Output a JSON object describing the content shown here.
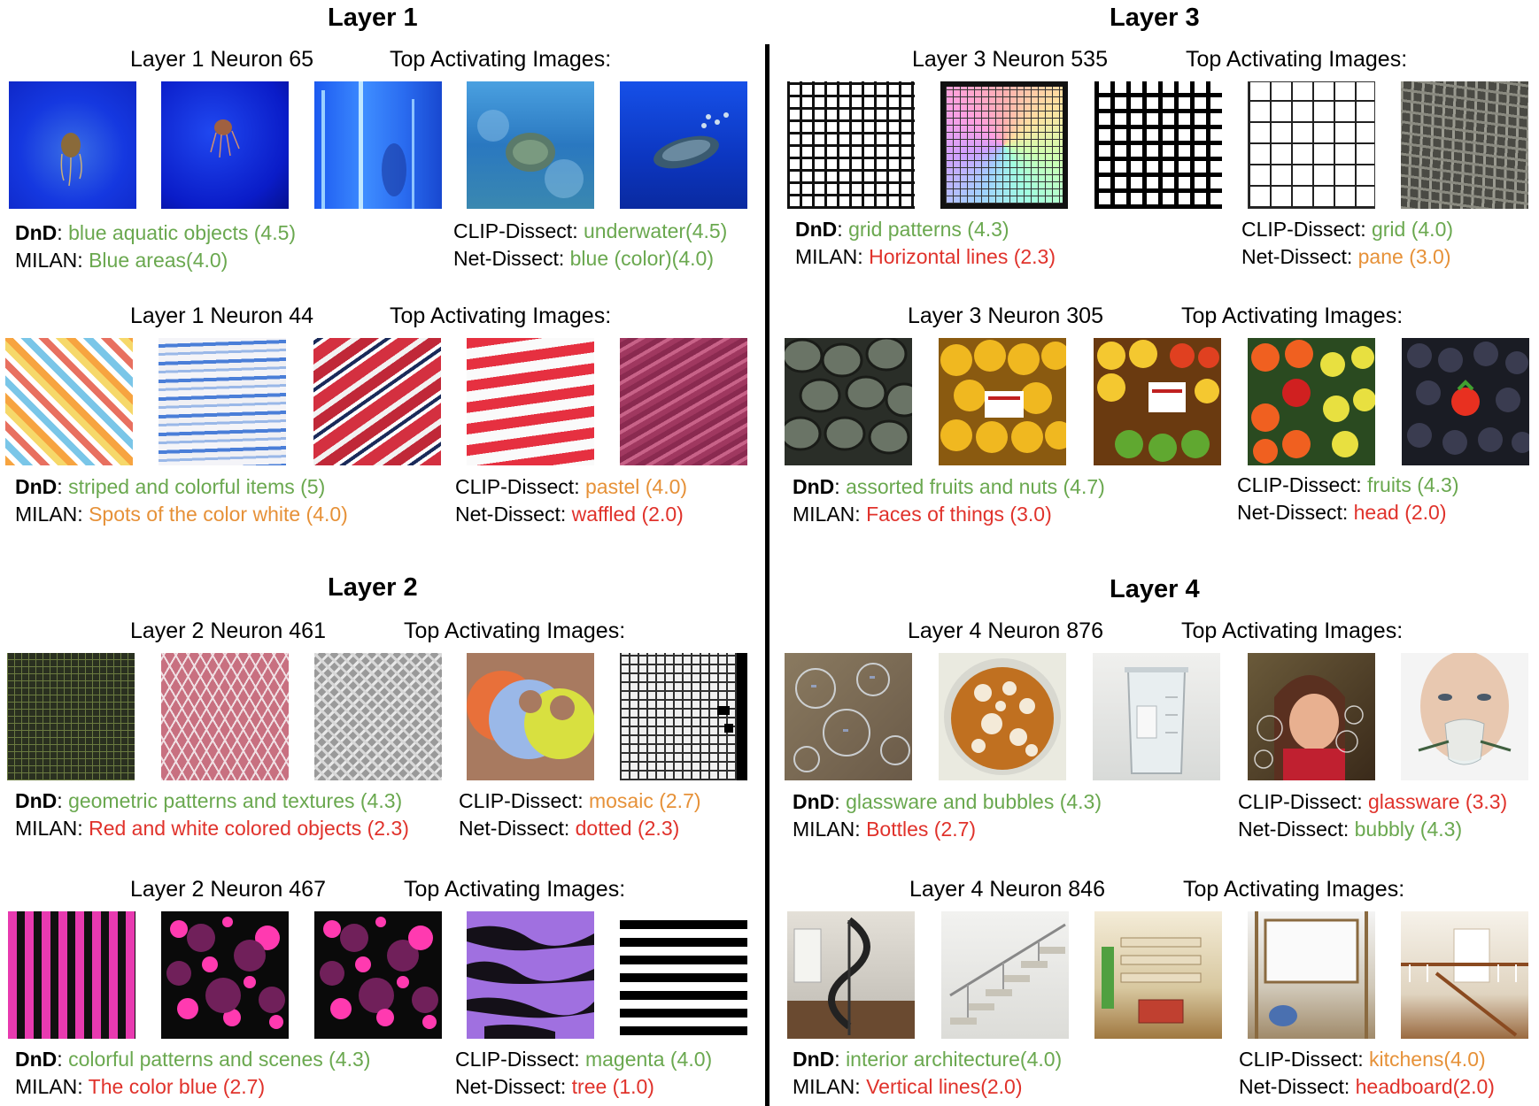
{
  "layers": {
    "layer1": "Layer 1",
    "layer2": "Layer 2",
    "layer3": "Layer 3",
    "layer4": "Layer 4"
  },
  "top_label": "Top Activating Images:",
  "method_labels": {
    "dnd": "DnD",
    "milan": "MILAN:",
    "clip": "CLIP-Dissect:",
    "net": "Net-Dissect:"
  },
  "panels": [
    {
      "neuron": "Layer 1 Neuron 65",
      "dnd": "blue aquatic objects (4.5)",
      "milan": "Blue areas(4.0)",
      "clip": "underwater(4.5)",
      "net": "blue (color)(4.0)"
    },
    {
      "neuron": "Layer 1 Neuron 44",
      "dnd": "striped and colorful items (5)",
      "milan": "Spots of the color white (4.0)",
      "clip": "pastel (4.0)",
      "net": "waffled (2.0)"
    },
    {
      "neuron": "Layer 2 Neuron 461",
      "dnd": "geometric patterns and textures (4.3)",
      "milan": "Red and white colored objects (2.3)",
      "clip": "mosaic (2.7)",
      "net": "dotted (2.3)"
    },
    {
      "neuron": "Layer 2 Neuron 467",
      "dnd": "colorful patterns and scenes (4.3)",
      "milan": "The color blue (2.7)",
      "clip": "magenta (4.0)",
      "net": "tree (1.0)"
    },
    {
      "neuron": "Layer 3 Neuron 535",
      "dnd": "grid patterns (4.3)",
      "milan": "Horizontal lines (2.3)",
      "clip": "grid (4.0)",
      "net": "pane (3.0)"
    },
    {
      "neuron": "Layer 3 Neuron 305",
      "dnd": "assorted fruits and nuts (4.7)",
      "milan": "Faces of things (3.0)",
      "clip": "fruits (4.3)",
      "net": "head (2.0)"
    },
    {
      "neuron": "Layer 4 Neuron 876",
      "dnd": "glassware and bubbles (4.3)",
      "milan": "Bottles (2.7)",
      "clip": "glassware (3.3)",
      "net": "bubbly (4.3)"
    },
    {
      "neuron": "Layer 4 Neuron 846",
      "dnd": "interior architecture(4.0)",
      "milan": "Vertical lines(2.0)",
      "clip": "kitchens(4.0)",
      "net": "headboard(2.0)"
    }
  ],
  "colors": {
    "good": "#6aa84f",
    "medium": "#e69138",
    "bad": "#e0322b"
  }
}
